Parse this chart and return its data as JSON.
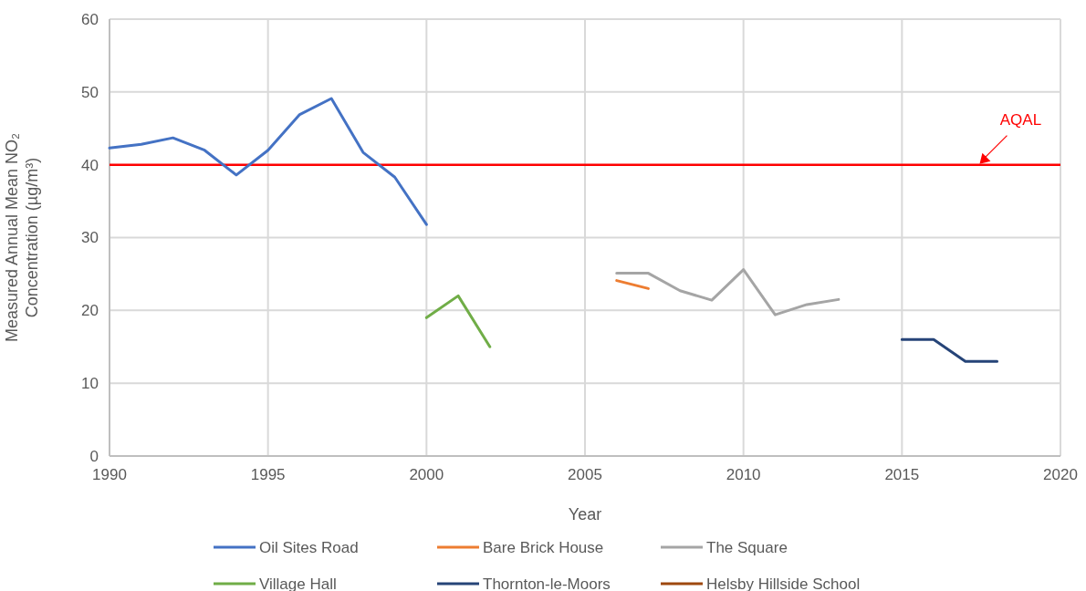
{
  "chart_data": {
    "type": "line",
    "xlabel": "Year",
    "ylabel": "Measured Annual Mean NO₂ Concentration (µg/m³)",
    "xlim": [
      1990,
      2020
    ],
    "xticks": [
      1990,
      1995,
      2000,
      2005,
      2010,
      2015,
      2020
    ],
    "ylim": [
      0,
      60
    ],
    "yticks": [
      0,
      10,
      20,
      30,
      40,
      50,
      60
    ],
    "grid": true,
    "legend": "bottom",
    "line_style": "solid",
    "series": [
      {
        "name": "Oil Sites Road",
        "color": "#4472c4",
        "x": [
          1990,
          1991,
          1992,
          1993,
          1994,
          1995,
          1996,
          1997,
          1998,
          1999,
          2000
        ],
        "values": [
          42.3,
          42.8,
          43.7,
          42.0,
          38.6,
          42.0,
          46.9,
          49.1,
          41.7,
          38.3,
          31.8
        ]
      },
      {
        "name": "Bare Brick House",
        "color": "#ed7d31",
        "x": [
          2006,
          2007
        ],
        "values": [
          24.1,
          23.0
        ]
      },
      {
        "name": "The Square",
        "color": "#a5a5a5",
        "x": [
          2006,
          2007,
          2008,
          2009,
          2010,
          2011,
          2012,
          2013
        ],
        "values": [
          25.1,
          25.1,
          22.7,
          21.4,
          25.6,
          19.4,
          20.8,
          21.5
        ]
      },
      {
        "name": "Village Hall",
        "color": "#70ad47",
        "x": [
          2000,
          2001,
          2002
        ],
        "values": [
          19,
          22,
          15
        ]
      },
      {
        "name": "Thornton-le-Moors",
        "color": "#264478",
        "x": [
          2015,
          2016,
          2017,
          2018
        ],
        "values": [
          16,
          16,
          13,
          13
        ]
      },
      {
        "name": "Helsby Hillside School",
        "color": "#9e480e"
      }
    ],
    "ref_lines": [
      {
        "axis": "y",
        "value": 40,
        "label": "AQAL",
        "color": "#ff0000",
        "line_style": "solid"
      }
    ]
  }
}
